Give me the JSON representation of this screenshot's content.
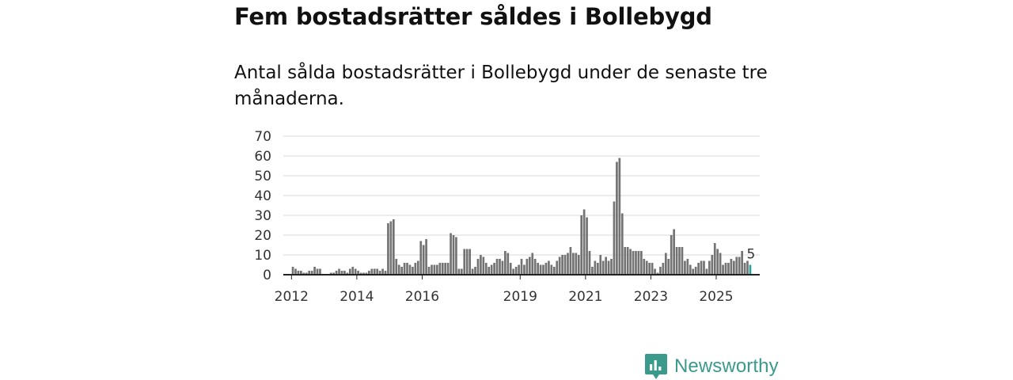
{
  "header": {
    "title": "Fem bostadsrätter såldes i Bollebygd",
    "subtitle": "Antal sålda bostadsrätter i Bollebygd under de senaste tre månaderna."
  },
  "brand": {
    "name": "Newsworthy",
    "color": "#3a9a8c",
    "icon": "newsworthy-logo-icon"
  },
  "chart_data": {
    "type": "bar",
    "title": "",
    "xlabel": "",
    "ylabel": "",
    "ylim": [
      0,
      70
    ],
    "yticks": [
      0,
      10,
      20,
      30,
      40,
      50,
      60,
      70
    ],
    "x_range": [
      "2011-10",
      "2026-05"
    ],
    "xtick_labels": [
      "2012",
      "2014",
      "2016",
      "2019",
      "2021",
      "2023",
      "2025"
    ],
    "grid": true,
    "bar_color": "#737373",
    "highlight_color": "#2aa198",
    "series": [
      {
        "name": "Antal sålda bostadsrätter",
        "start": "2012-01",
        "values": [
          4,
          3,
          2,
          2,
          1,
          1,
          2,
          2,
          4,
          3,
          3,
          0,
          0,
          0,
          1,
          1,
          2,
          3,
          2,
          2,
          1,
          3,
          4,
          3,
          2,
          1,
          1,
          1,
          2,
          3,
          3,
          3,
          2,
          3,
          2,
          26,
          27,
          28,
          8,
          5,
          4,
          6,
          6,
          5,
          4,
          6,
          7,
          17,
          15,
          18,
          4,
          5,
          5,
          5,
          6,
          6,
          6,
          6,
          21,
          20,
          19,
          3,
          3,
          13,
          13,
          13,
          3,
          4,
          8,
          10,
          9,
          6,
          4,
          5,
          6,
          8,
          8,
          7,
          12,
          11,
          6,
          3,
          4,
          5,
          8,
          5,
          8,
          9,
          11,
          8,
          6,
          5,
          5,
          6,
          7,
          5,
          4,
          7,
          9,
          10,
          10,
          11,
          14,
          11,
          11,
          10,
          30,
          33,
          29,
          12,
          4,
          7,
          6,
          10,
          7,
          9,
          7,
          8,
          37,
          57,
          59,
          31,
          14,
          14,
          13,
          12,
          12,
          12,
          12,
          8,
          7,
          6,
          6,
          3,
          1,
          4,
          6,
          11,
          8,
          20,
          23,
          14,
          14,
          14,
          7,
          8,
          5,
          3,
          4,
          6,
          7,
          7,
          3,
          7,
          10,
          16,
          13,
          11,
          5,
          6,
          6,
          8,
          7,
          9,
          9,
          12,
          6,
          7,
          5
        ]
      }
    ],
    "annotations": [
      {
        "label": "5",
        "at": "last"
      }
    ]
  }
}
